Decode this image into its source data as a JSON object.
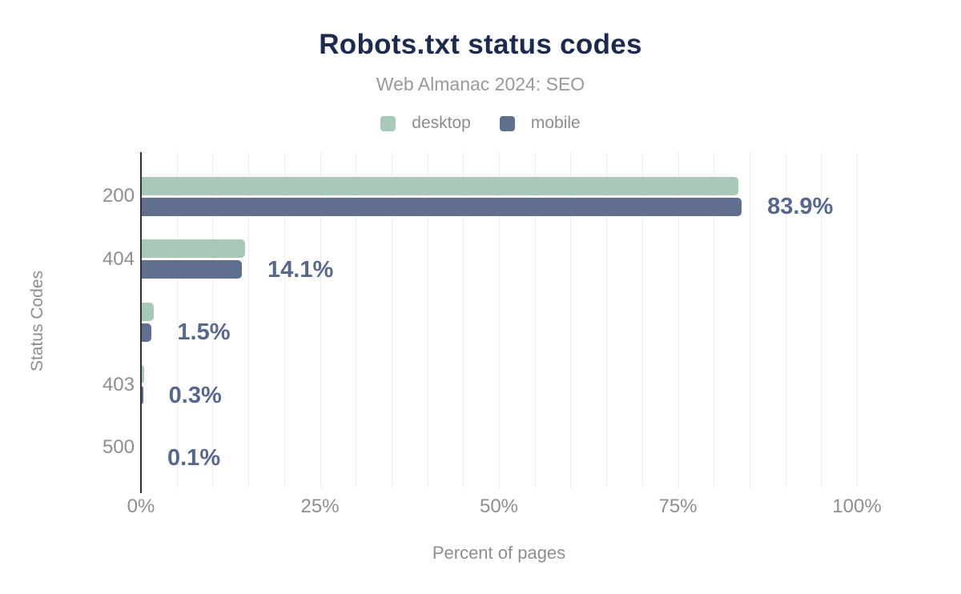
{
  "colors": {
    "desktop": "#a8c9b7",
    "mobile": "#5f6f8d",
    "title_text": "#1b2b4d",
    "subtitle_text": "#98999b",
    "axis_text": "#8c8e91",
    "data_label_text": "#56688c",
    "gridline": "#ededed",
    "axis_line": "#2f3337"
  },
  "chart_data": {
    "type": "bar",
    "orientation": "horizontal",
    "title": "Robots.txt status codes",
    "subtitle": "Web Almanac 2024: SEO",
    "categories": [
      "200",
      "404",
      "",
      "403",
      "500"
    ],
    "series": [
      {
        "name": "desktop",
        "color": "#a8c9b7",
        "values": [
          83.5,
          14.5,
          1.8,
          0.5,
          0.1
        ]
      },
      {
        "name": "mobile",
        "color": "#5f6f8d",
        "values": [
          83.9,
          14.1,
          1.5,
          0.3,
          0.1
        ]
      }
    ],
    "data_labels": [
      "83.9%",
      "14.1%",
      "1.5%",
      "0.3%",
      "0.1%"
    ],
    "data_labels_series": "mobile",
    "xlabel": "Percent of pages",
    "ylabel": "Status Codes",
    "xlim": [
      0,
      100
    ],
    "x_ticks": [
      {
        "label": "0%",
        "value": 0
      },
      {
        "label": "25%",
        "value": 25
      },
      {
        "label": "50%",
        "value": 50
      },
      {
        "label": "75%",
        "value": 75
      },
      {
        "label": "100%",
        "value": 100
      }
    ],
    "gridline_step_percent": 5,
    "grid": true,
    "legend_position": "top"
  }
}
